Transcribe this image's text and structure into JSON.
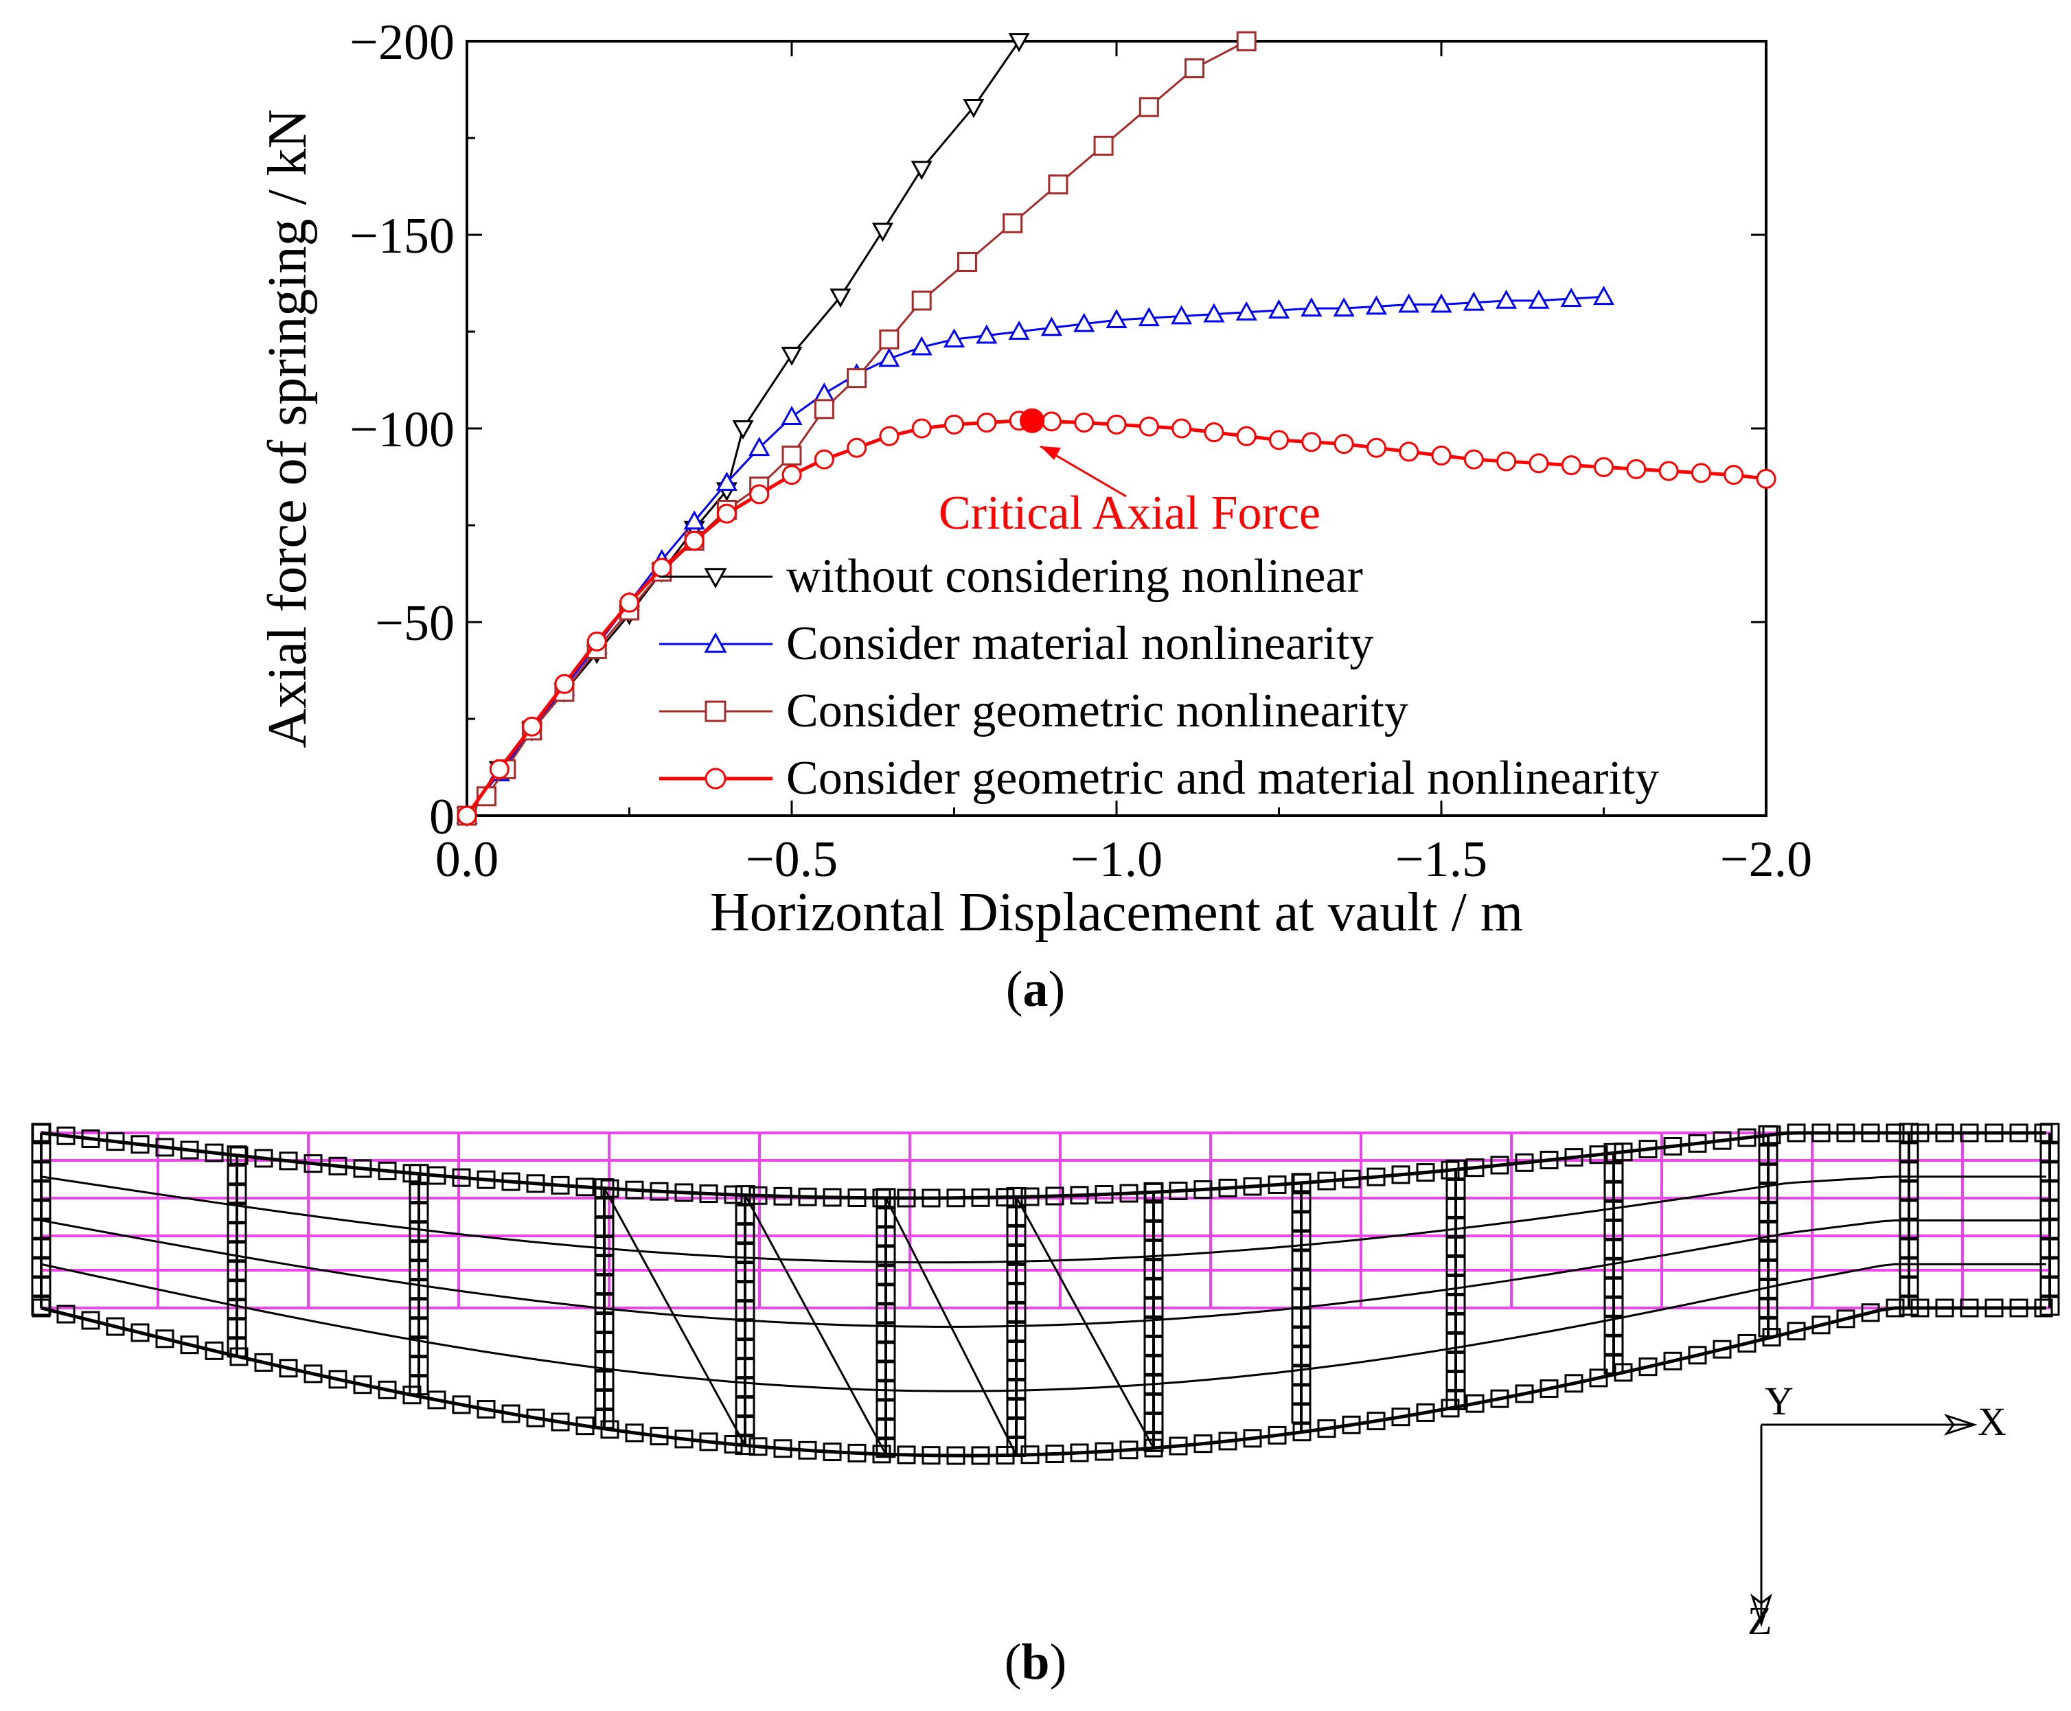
{
  "chart_data": [
    {
      "type": "line",
      "panel": "(a)",
      "xlabel": "Horizontal Displacement at vault / m",
      "ylabel": "Axial force of springing / kN",
      "xlim": [
        0.0,
        -2.0
      ],
      "ylim": [
        0,
        -200
      ],
      "x_ticks": [
        "0.0",
        "−0.5",
        "−1.0",
        "−1.5",
        "−2.0"
      ],
      "y_ticks": [
        "0",
        "−50",
        "−100",
        "−150",
        "−200"
      ],
      "x_tick_values": [
        0.0,
        -0.5,
        -1.0,
        -1.5,
        -2.0
      ],
      "y_tick_values": [
        0,
        -50,
        -100,
        -150,
        -200
      ],
      "legend_position": "bottom-right",
      "series": [
        {
          "name": "without considering nonlinear",
          "color": "#000000",
          "marker": "triangle-down",
          "x": [
            0,
            -0.05,
            -0.1,
            -0.15,
            -0.2,
            -0.25,
            -0.3,
            -0.35,
            -0.4,
            -0.425,
            -0.5,
            -0.575,
            -0.64,
            -0.7,
            -0.78,
            -0.85
          ],
          "y": [
            0,
            -12,
            -22,
            -32,
            -42,
            -52,
            -63,
            -74,
            -84,
            -100,
            -119,
            -134,
            -151,
            -167,
            -183,
            -200
          ]
        },
        {
          "name": "Consider material nonlinearity",
          "color": "#0000ff",
          "marker": "triangle-up",
          "x": [
            0,
            -0.05,
            -0.1,
            -0.15,
            -0.2,
            -0.25,
            -0.3,
            -0.35,
            -0.4,
            -0.45,
            -0.5,
            -0.55,
            -0.6,
            -0.65,
            -0.7,
            -0.75,
            -0.8,
            -0.85,
            -0.9,
            -0.95,
            -1.0,
            -1.05,
            -1.1,
            -1.15,
            -1.2,
            -1.25,
            -1.3,
            -1.35,
            -1.4,
            -1.45,
            -1.5,
            -1.55,
            -1.6,
            -1.65,
            -1.7,
            -1.75
          ],
          "y": [
            0,
            -11,
            -22,
            -33,
            -44,
            -55,
            -66,
            -76,
            -86,
            -95,
            -103,
            -109,
            -114,
            -118,
            -121,
            -123,
            -124,
            -125,
            -126,
            -127,
            -128,
            -128.5,
            -129,
            -129.5,
            -130,
            -130.5,
            -131,
            -131,
            -131.5,
            -132,
            -132,
            -132.5,
            -133,
            -133,
            -133.5,
            -134
          ]
        },
        {
          "name": "Consider geometric nonlinearity",
          "color": "#a52a2a",
          "marker": "square",
          "x": [
            0,
            -0.03,
            -0.06,
            -0.1,
            -0.15,
            -0.2,
            -0.25,
            -0.3,
            -0.35,
            -0.4,
            -0.45,
            -0.5,
            -0.55,
            -0.6,
            -0.65,
            -0.7,
            -0.77,
            -0.84,
            -0.91,
            -0.98,
            -1.05,
            -1.12,
            -1.2
          ],
          "y": [
            0,
            -5,
            -12,
            -22,
            -32,
            -43,
            -53,
            -63,
            -71,
            -79,
            -85,
            -93,
            -105,
            -113,
            -123,
            -133,
            -143,
            -153,
            -163,
            -173,
            -183,
            -193,
            -200
          ]
        },
        {
          "name": "Consider geometric and material nonlinearity",
          "color": "#ff0000",
          "marker": "circle",
          "x": [
            0,
            -0.05,
            -0.1,
            -0.15,
            -0.2,
            -0.25,
            -0.3,
            -0.35,
            -0.4,
            -0.45,
            -0.5,
            -0.55,
            -0.6,
            -0.65,
            -0.7,
            -0.75,
            -0.8,
            -0.85,
            -0.9,
            -0.95,
            -1.0,
            -1.05,
            -1.1,
            -1.15,
            -1.2,
            -1.25,
            -1.3,
            -1.35,
            -1.4,
            -1.45,
            -1.5,
            -1.55,
            -1.6,
            -1.65,
            -1.7,
            -1.75,
            -1.8,
            -1.85,
            -1.9,
            -1.95,
            -2.0
          ],
          "y": [
            0,
            -12,
            -23,
            -34,
            -45,
            -55,
            -64,
            -71,
            -78,
            -83,
            -88,
            -92,
            -95,
            -98,
            -100,
            -101,
            -101.5,
            -102,
            -101.8,
            -101.5,
            -101,
            -100.5,
            -100,
            -99,
            -98,
            -97,
            -96.5,
            -96,
            -95,
            -94,
            -93,
            -92,
            -91.5,
            -91,
            -90.5,
            -90,
            -89.5,
            -89,
            -88.5,
            -88,
            -87
          ]
        }
      ],
      "annotations": [
        {
          "text": "Critical Axial Force",
          "x": -0.87,
          "y": -102,
          "color": "#ff0000"
        }
      ]
    },
    {
      "type": "other",
      "panel": "(b)",
      "description_labels": {
        "axis_x": "X",
        "axis_y": "Y",
        "axis_z": "Z"
      }
    }
  ],
  "captions": {
    "a": "a",
    "b": "b"
  },
  "colors": {
    "mesh": "#ee44ee",
    "frame": "#000000"
  }
}
